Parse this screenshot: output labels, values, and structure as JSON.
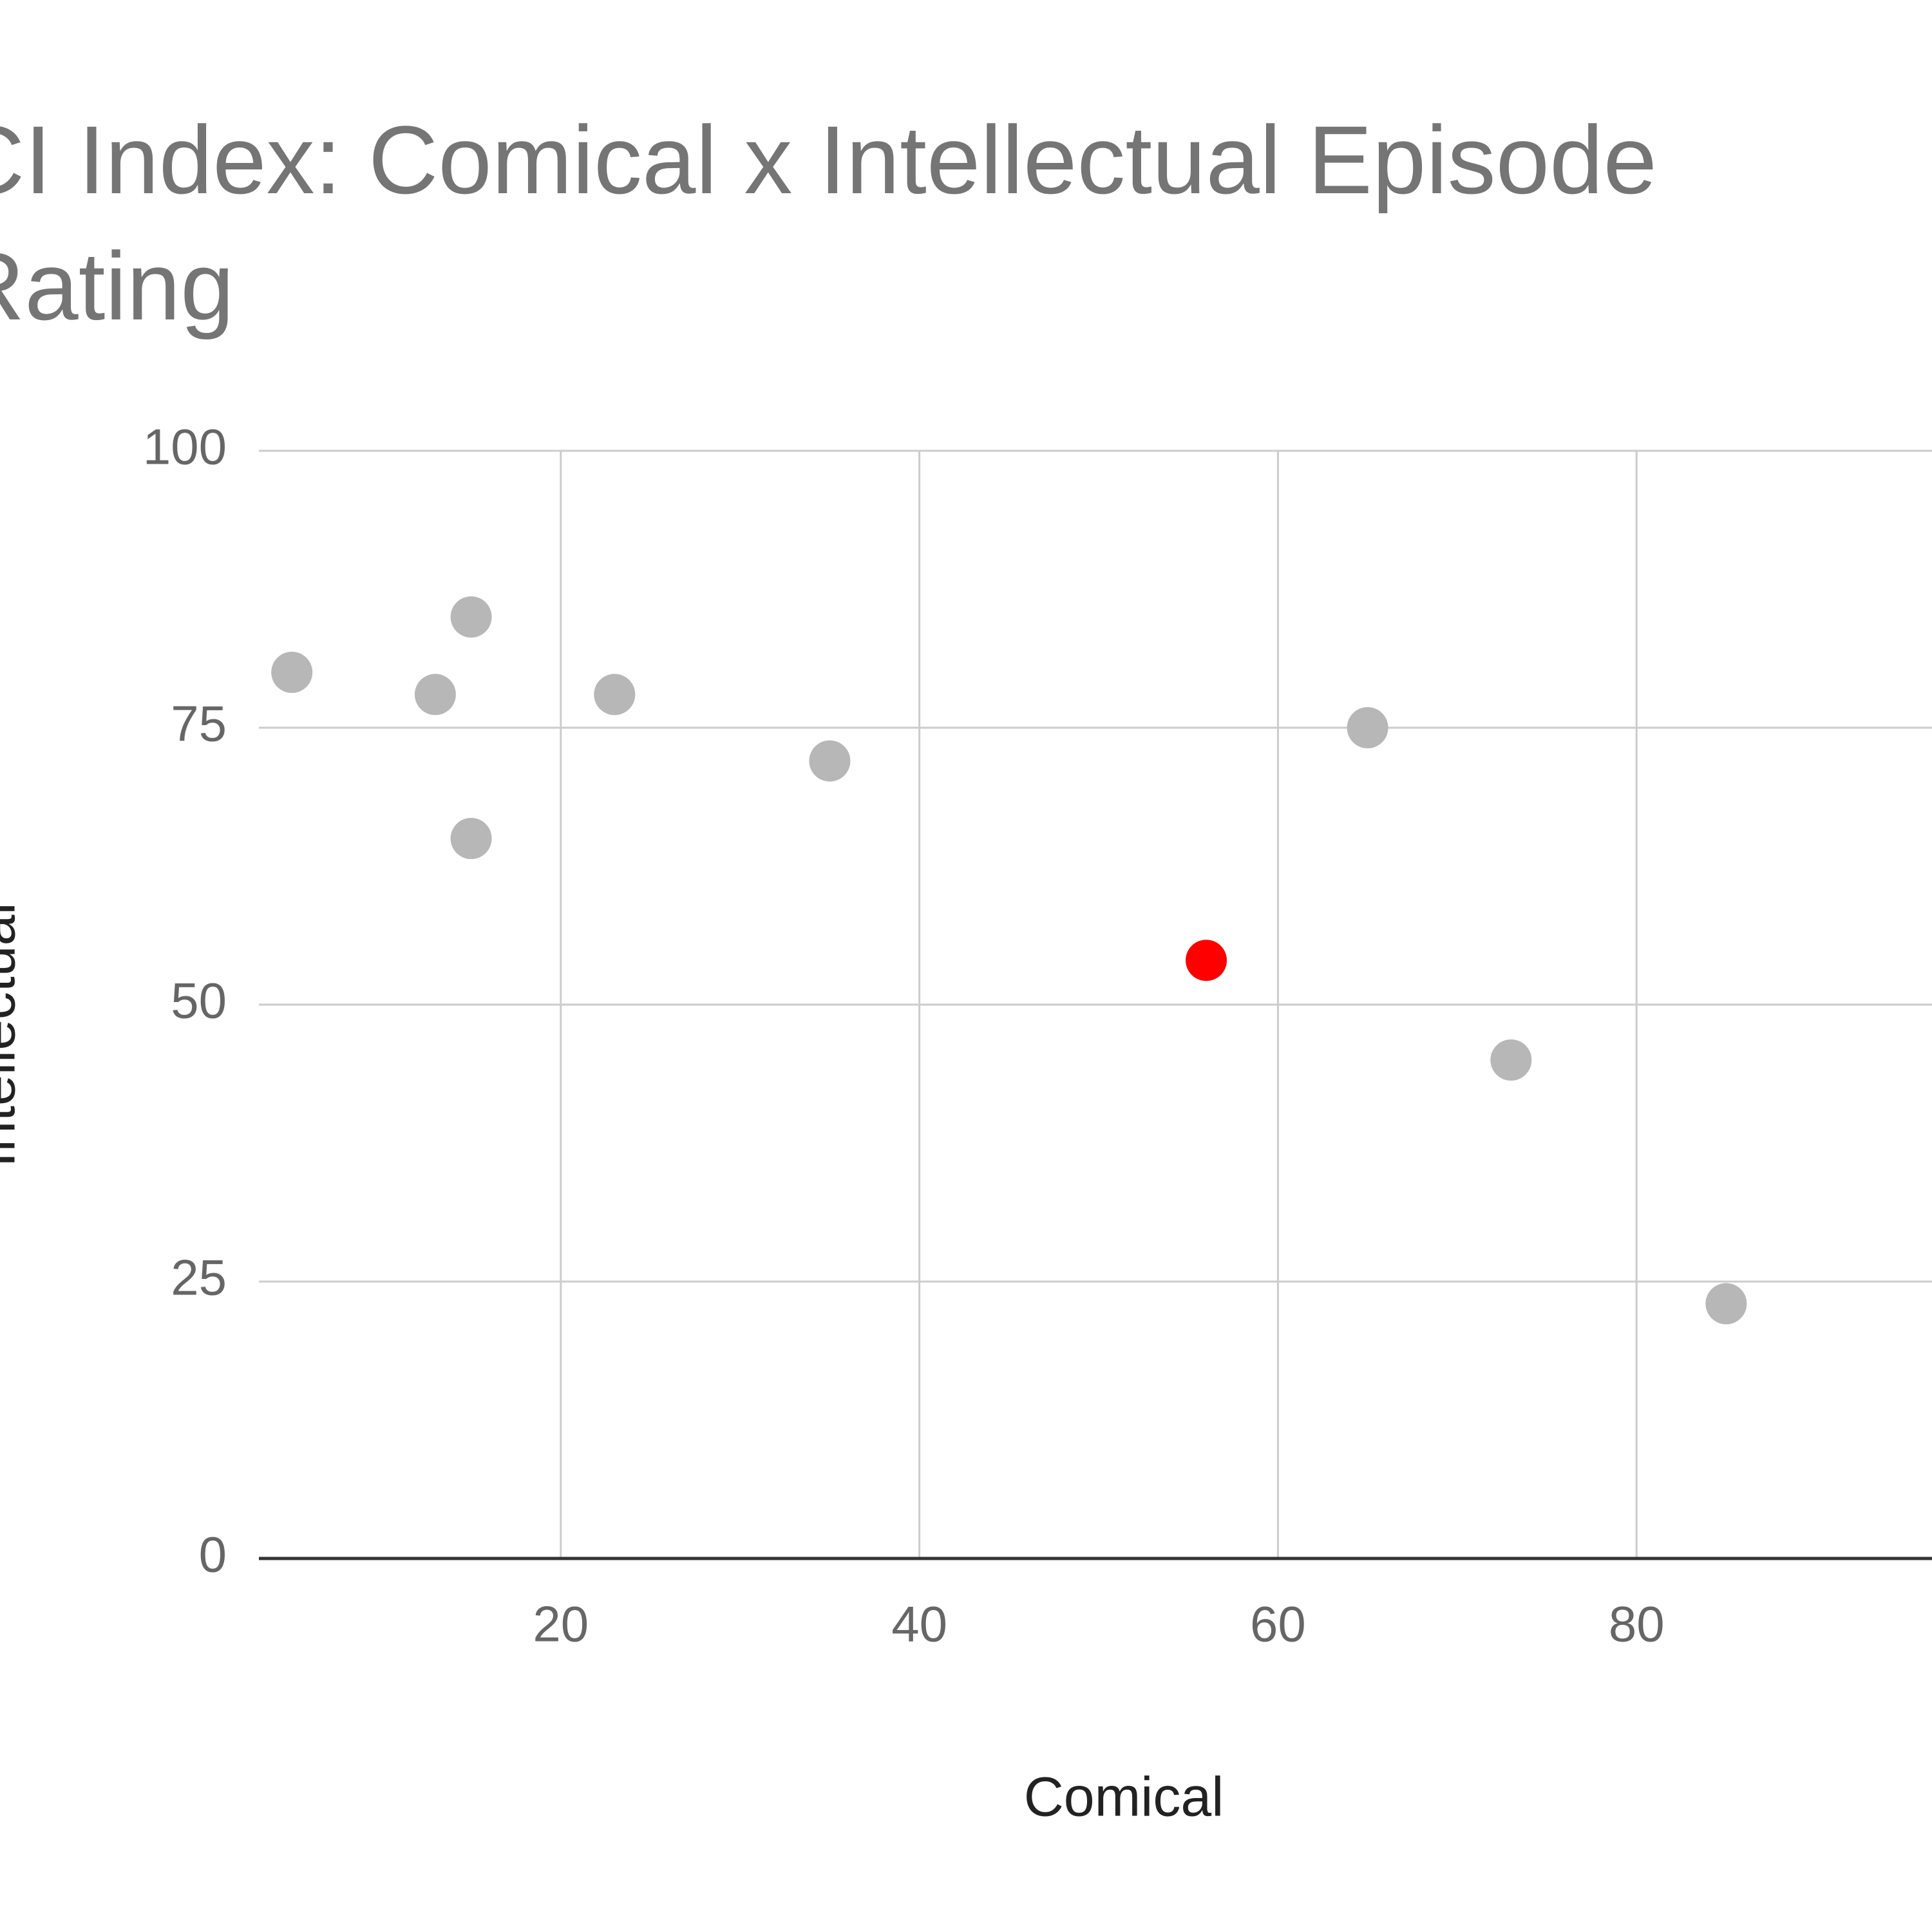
{
  "chart_data": {
    "type": "scatter",
    "title": "CI Index: Comical x Intellectual Episode Rating",
    "x_label": "Comical",
    "y_label": "Intellectual",
    "x": [
      5,
      15,
      13,
      23,
      15,
      35,
      65,
      56,
      73,
      85
    ],
    "values": [
      80,
      85,
      78,
      78,
      65,
      72,
      75,
      54,
      45,
      23
    ],
    "colors": [
      "#b7b7b7",
      "#b7b7b7",
      "#b7b7b7",
      "#b7b7b7",
      "#b7b7b7",
      "#b7b7b7",
      "#b7b7b7",
      "#ff0000",
      "#b7b7b7",
      "#b7b7b7"
    ],
    "xlim": [
      3,
      100
    ],
    "xticks": [
      20,
      40,
      60,
      80
    ],
    "ylim": [
      0,
      100
    ],
    "yticks": [
      0,
      25,
      50,
      75,
      100
    ],
    "grid": true
  }
}
